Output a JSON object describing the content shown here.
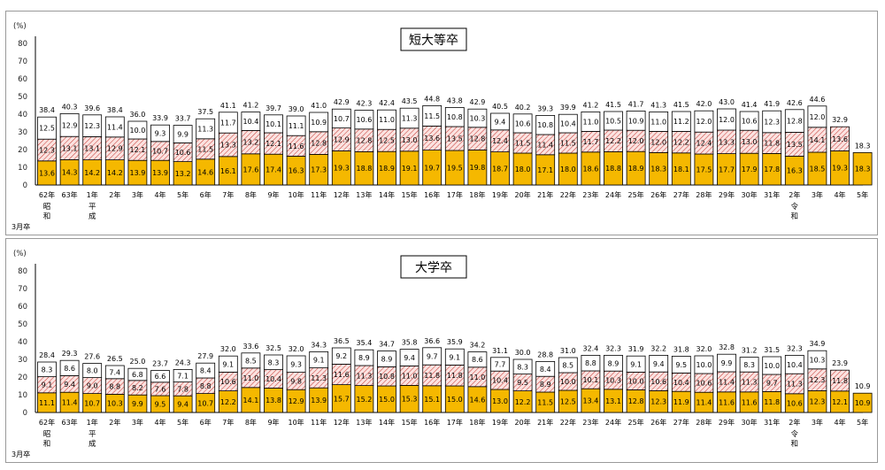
{
  "chart_data": [
    {
      "type": "bar",
      "title": "短大等卒",
      "ylabel": "(%)",
      "ylim": [
        0,
        80
      ],
      "yticks": [
        "0",
        "10",
        "20",
        "30",
        "40",
        "50",
        "60",
        "70",
        "80"
      ],
      "x_prefix": "3月卒",
      "categories": [
        "62年",
        "63年",
        "1年",
        "2年",
        "3年",
        "4年",
        "5年",
        "6年",
        "7年",
        "8年",
        "9年",
        "10年",
        "11年",
        "12年",
        "13年",
        "14年",
        "15年",
        "16年",
        "17年",
        "18年",
        "19年",
        "20年",
        "21年",
        "22年",
        "23年",
        "24年",
        "25年",
        "26年",
        "27年",
        "28年",
        "29年",
        "30年",
        "31年",
        "2年",
        "3年",
        "4年",
        "5年"
      ],
      "era_labels": [
        {
          "index": 0,
          "text": "昭和"
        },
        {
          "index": 2,
          "text": "平成"
        },
        {
          "index": 33,
          "text": "令和"
        }
      ],
      "series": [
        {
          "values": [
            13.6,
            14.3,
            14.2,
            14.2,
            13.9,
            13.9,
            13.2,
            14.6,
            16.1,
            17.6,
            17.4,
            16.3,
            17.3,
            19.3,
            18.8,
            18.9,
            19.1,
            19.7,
            19.5,
            19.8,
            18.7,
            18.0,
            17.1,
            18.0,
            18.6,
            18.8,
            18.9,
            18.3,
            18.1,
            17.5,
            17.7,
            17.9,
            17.8,
            16.3,
            18.5,
            19.3,
            18.3
          ]
        },
        {
          "values": [
            12.3,
            13.1,
            13.1,
            12.9,
            12.1,
            10.7,
            10.6,
            11.5,
            13.3,
            13.2,
            12.1,
            11.6,
            12.8,
            12.9,
            12.8,
            12.5,
            13.0,
            13.6,
            13.5,
            12.8,
            12.4,
            11.5,
            11.4,
            11.5,
            11.7,
            12.2,
            12.0,
            12.0,
            12.2,
            12.4,
            13.3,
            13.0,
            11.8,
            13.5,
            14.1,
            13.6,
            null
          ]
        },
        {
          "values": [
            12.5,
            12.9,
            12.3,
            11.4,
            10.0,
            9.3,
            9.9,
            11.3,
            11.7,
            10.4,
            10.1,
            11.1,
            10.9,
            10.7,
            10.6,
            11.0,
            11.3,
            11.5,
            10.8,
            10.3,
            9.4,
            10.6,
            10.8,
            10.4,
            11.0,
            10.5,
            10.9,
            11.0,
            11.2,
            12.0,
            12.0,
            10.6,
            12.3,
            12.8,
            12.0,
            null,
            null
          ]
        }
      ],
      "totals": [
        38.4,
        40.3,
        39.6,
        38.4,
        36.0,
        33.9,
        33.7,
        37.5,
        41.1,
        41.2,
        39.7,
        39.0,
        41.0,
        42.9,
        42.3,
        42.4,
        43.5,
        44.8,
        43.8,
        42.9,
        40.5,
        40.2,
        39.3,
        39.9,
        41.2,
        41.5,
        41.7,
        41.3,
        41.5,
        42.0,
        43.0,
        41.4,
        41.9,
        42.6,
        44.6,
        32.9,
        18.3
      ],
      "colors": {
        "bottom": "#f5b800",
        "middle": "#fbe3e1",
        "middle_hatch": "#c9403a",
        "top": "#ffffff"
      },
      "grid": false,
      "legend": "none"
    },
    {
      "type": "bar",
      "title": "大学卒",
      "ylabel": "(%)",
      "ylim": [
        0,
        80
      ],
      "yticks": [
        "0",
        "10",
        "20",
        "30",
        "40",
        "50",
        "60",
        "70",
        "80"
      ],
      "x_prefix": "3月卒",
      "categories": [
        "62年",
        "63年",
        "1年",
        "2年",
        "3年",
        "4年",
        "5年",
        "6年",
        "7年",
        "8年",
        "9年",
        "10年",
        "11年",
        "12年",
        "13年",
        "14年",
        "15年",
        "16年",
        "17年",
        "18年",
        "19年",
        "20年",
        "21年",
        "22年",
        "23年",
        "24年",
        "25年",
        "26年",
        "27年",
        "28年",
        "29年",
        "30年",
        "31年",
        "2年",
        "3年",
        "4年",
        "5年"
      ],
      "era_labels": [
        {
          "index": 0,
          "text": "昭和"
        },
        {
          "index": 2,
          "text": "平成"
        },
        {
          "index": 33,
          "text": "令和"
        }
      ],
      "series": [
        {
          "values": [
            11.1,
            11.4,
            10.7,
            10.3,
            9.9,
            9.5,
            9.4,
            10.7,
            12.2,
            14.1,
            13.8,
            12.9,
            13.9,
            15.7,
            15.2,
            15.0,
            15.3,
            15.1,
            15.0,
            14.6,
            13.0,
            12.2,
            11.5,
            12.5,
            13.4,
            13.1,
            12.8,
            12.3,
            11.9,
            11.4,
            11.6,
            11.6,
            11.8,
            10.6,
            12.3,
            12.1,
            10.9
          ]
        },
        {
          "values": [
            9.1,
            9.4,
            9.0,
            8.8,
            8.2,
            7.6,
            7.8,
            8.8,
            10.6,
            11.0,
            10.4,
            9.8,
            11.3,
            11.6,
            11.3,
            10.8,
            11.0,
            11.8,
            11.8,
            11.0,
            10.4,
            9.5,
            8.9,
            10.0,
            10.1,
            10.3,
            10.0,
            10.6,
            10.4,
            10.6,
            11.4,
            11.3,
            9.7,
            11.3,
            12.3,
            11.8,
            null
          ]
        },
        {
          "values": [
            8.3,
            8.6,
            8.0,
            7.4,
            6.8,
            6.6,
            7.1,
            8.4,
            9.1,
            8.5,
            8.3,
            9.3,
            9.1,
            9.2,
            8.9,
            8.9,
            9.4,
            9.7,
            9.1,
            8.6,
            7.7,
            8.3,
            8.4,
            8.5,
            8.8,
            8.9,
            9.1,
            9.4,
            9.5,
            10.0,
            9.9,
            8.3,
            10.0,
            10.4,
            10.3,
            null,
            null
          ]
        }
      ],
      "totals": [
        28.4,
        29.3,
        27.6,
        26.5,
        25.0,
        23.7,
        24.3,
        27.9,
        32.0,
        33.6,
        32.5,
        32.0,
        34.3,
        36.5,
        35.4,
        34.7,
        35.8,
        36.6,
        35.9,
        34.2,
        31.1,
        30.0,
        28.8,
        31.0,
        32.4,
        32.3,
        31.9,
        32.2,
        31.8,
        32.0,
        32.8,
        31.2,
        31.5,
        32.3,
        34.9,
        23.9,
        10.9
      ],
      "colors": {
        "bottom": "#f5b800",
        "middle": "#fbe3e1",
        "middle_hatch": "#c9403a",
        "top": "#ffffff"
      },
      "grid": false,
      "legend": "none"
    }
  ]
}
